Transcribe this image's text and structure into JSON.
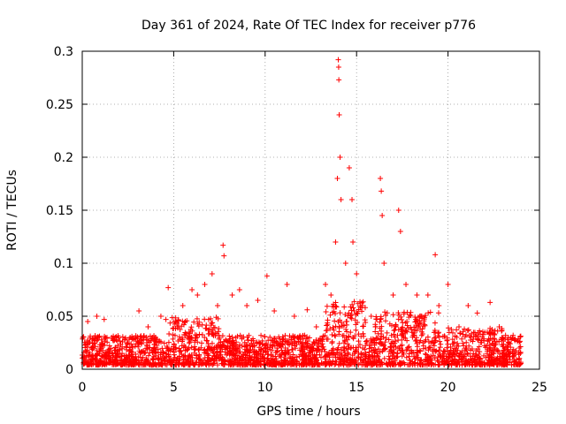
{
  "chart_data": {
    "type": "scatter",
    "title": "Day 361 of 2024, Rate Of TEC Index for receiver p776",
    "xlabel": "GPS time / hours",
    "ylabel": "ROTI / TECUs",
    "xlim": [
      0,
      25
    ],
    "ylim": [
      0,
      0.3
    ],
    "xticks": [
      0,
      5,
      10,
      15,
      20,
      25
    ],
    "xtick_labels": [
      "0",
      "5",
      "10",
      "15",
      "20",
      "25"
    ],
    "yticks": [
      0,
      0.05,
      0.1,
      0.15,
      0.2,
      0.25,
      0.3
    ],
    "ytick_labels": [
      "0",
      "0.05",
      "0.1",
      "0.15",
      "0.2",
      "0.25",
      "0.3"
    ],
    "grid": true,
    "marker": "+",
    "color": "#ff0000",
    "series_note": "Dense ROTI scatter 0-24 h, baseline ~0.005-0.04 TECU/min; representative points below",
    "points": [
      [
        0.1,
        0.012
      ],
      [
        0.3,
        0.045
      ],
      [
        0.5,
        0.02
      ],
      [
        0.8,
        0.05
      ],
      [
        1.2,
        0.047
      ],
      [
        1.8,
        0.03
      ],
      [
        2.5,
        0.025
      ],
      [
        3.1,
        0.055
      ],
      [
        3.6,
        0.04
      ],
      [
        4.3,
        0.05
      ],
      [
        4.7,
        0.077
      ],
      [
        5.1,
        0.045
      ],
      [
        5.5,
        0.06
      ],
      [
        6.0,
        0.075
      ],
      [
        6.3,
        0.07
      ],
      [
        6.7,
        0.08
      ],
      [
        7.1,
        0.09
      ],
      [
        7.4,
        0.06
      ],
      [
        7.7,
        0.117
      ],
      [
        7.75,
        0.107
      ],
      [
        8.2,
        0.07
      ],
      [
        8.6,
        0.075
      ],
      [
        9.0,
        0.06
      ],
      [
        9.6,
        0.065
      ],
      [
        10.1,
        0.088
      ],
      [
        10.5,
        0.055
      ],
      [
        11.2,
        0.08
      ],
      [
        11.6,
        0.05
      ],
      [
        12.3,
        0.056
      ],
      [
        12.8,
        0.04
      ],
      [
        13.3,
        0.08
      ],
      [
        13.6,
        0.07
      ],
      [
        13.85,
        0.12
      ],
      [
        13.95,
        0.18
      ],
      [
        14.0,
        0.292
      ],
      [
        14.02,
        0.285
      ],
      [
        14.03,
        0.273
      ],
      [
        14.05,
        0.24
      ],
      [
        14.1,
        0.2
      ],
      [
        14.15,
        0.16
      ],
      [
        14.4,
        0.1
      ],
      [
        14.6,
        0.19
      ],
      [
        14.75,
        0.16
      ],
      [
        14.8,
        0.12
      ],
      [
        15.0,
        0.09
      ],
      [
        15.3,
        0.06
      ],
      [
        15.8,
        0.05
      ],
      [
        16.3,
        0.18
      ],
      [
        16.35,
        0.168
      ],
      [
        16.4,
        0.145
      ],
      [
        16.5,
        0.1
      ],
      [
        17.0,
        0.07
      ],
      [
        17.3,
        0.15
      ],
      [
        17.4,
        0.13
      ],
      [
        17.7,
        0.08
      ],
      [
        18.3,
        0.07
      ],
      [
        18.9,
        0.07
      ],
      [
        19.3,
        0.108
      ],
      [
        19.5,
        0.06
      ],
      [
        20.0,
        0.08
      ],
      [
        20.6,
        0.04
      ],
      [
        21.1,
        0.06
      ],
      [
        21.6,
        0.053
      ],
      [
        22.3,
        0.063
      ],
      [
        22.8,
        0.04
      ],
      [
        23.3,
        0.03
      ],
      [
        23.9,
        0.02
      ]
    ]
  }
}
